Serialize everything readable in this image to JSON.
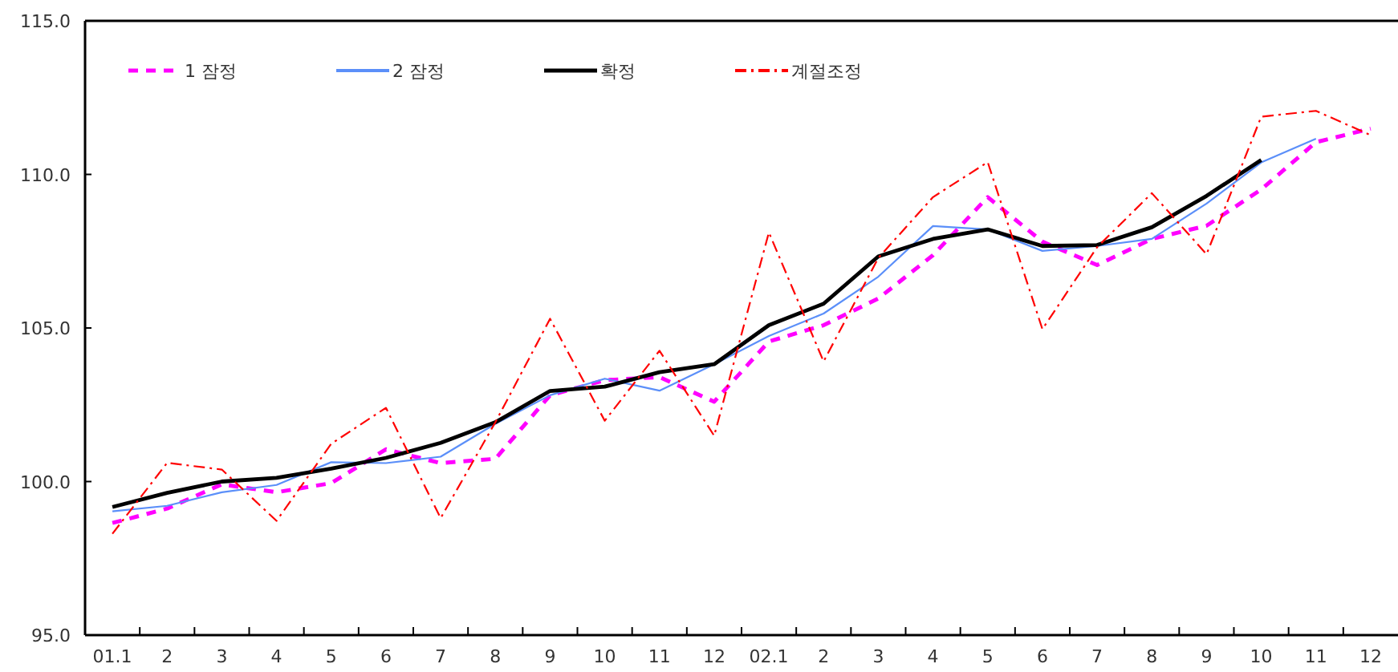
{
  "chart_data": {
    "type": "line",
    "categories": [
      "01.1",
      "2",
      "3",
      "4",
      "5",
      "6",
      "7",
      "8",
      "9",
      "10",
      "11",
      "12",
      "02.1",
      "2",
      "3",
      "4",
      "5",
      "6",
      "7",
      "8",
      "9",
      "10",
      "11",
      "12"
    ],
    "ylim": [
      95,
      115
    ],
    "yticks": [
      {
        "value": 95,
        "label": "95.0"
      },
      {
        "value": 100,
        "label": "100.0"
      },
      {
        "value": 105,
        "label": "105.0"
      },
      {
        "value": 110,
        "label": "110.0"
      },
      {
        "value": 115,
        "label": "115.0"
      }
    ],
    "legend": "top left",
    "grid": false,
    "marker": "none",
    "series": [
      {
        "name": "1 잠정",
        "color": "#ff00ff",
        "line_style": "dashed",
        "values": [
          98.65,
          99.12,
          99.91,
          99.65,
          99.95,
          101.05,
          100.6,
          100.74,
          102.81,
          103.3,
          103.4,
          102.6,
          104.56,
          105.09,
          105.96,
          107.37,
          109.26,
          107.81,
          107.05,
          107.9,
          108.33,
          109.51,
          111.05,
          111.49
        ]
      },
      {
        "name": "2 잠정",
        "color": "#5b8ff9",
        "line_style": "solid",
        "values": [
          99.03,
          99.21,
          99.65,
          99.89,
          100.63,
          100.6,
          100.81,
          101.88,
          102.81,
          103.35,
          102.96,
          103.82,
          104.74,
          105.47,
          106.67,
          108.32,
          108.21,
          107.51,
          107.67,
          107.9,
          109.05,
          110.39,
          111.16,
          null
        ]
      },
      {
        "name": "확정",
        "color": "#000000",
        "line_style": "solid",
        "values": [
          99.17,
          99.63,
          100.0,
          100.12,
          100.42,
          100.77,
          101.26,
          101.93,
          102.95,
          103.09,
          103.56,
          103.82,
          105.09,
          105.79,
          107.33,
          107.9,
          108.21,
          107.67,
          107.7,
          108.28,
          109.3,
          110.47,
          null,
          null
        ]
      },
      {
        "name": "계절조정",
        "color": "#ff0000",
        "line_style": "dashdot",
        "values": [
          98.3,
          100.61,
          100.39,
          98.72,
          101.23,
          102.4,
          98.81,
          101.93,
          105.3,
          101.98,
          104.26,
          101.49,
          108.11,
          103.91,
          107.28,
          109.26,
          110.4,
          104.96,
          107.63,
          109.39,
          107.4,
          111.88,
          112.07,
          111.28
        ]
      }
    ]
  }
}
